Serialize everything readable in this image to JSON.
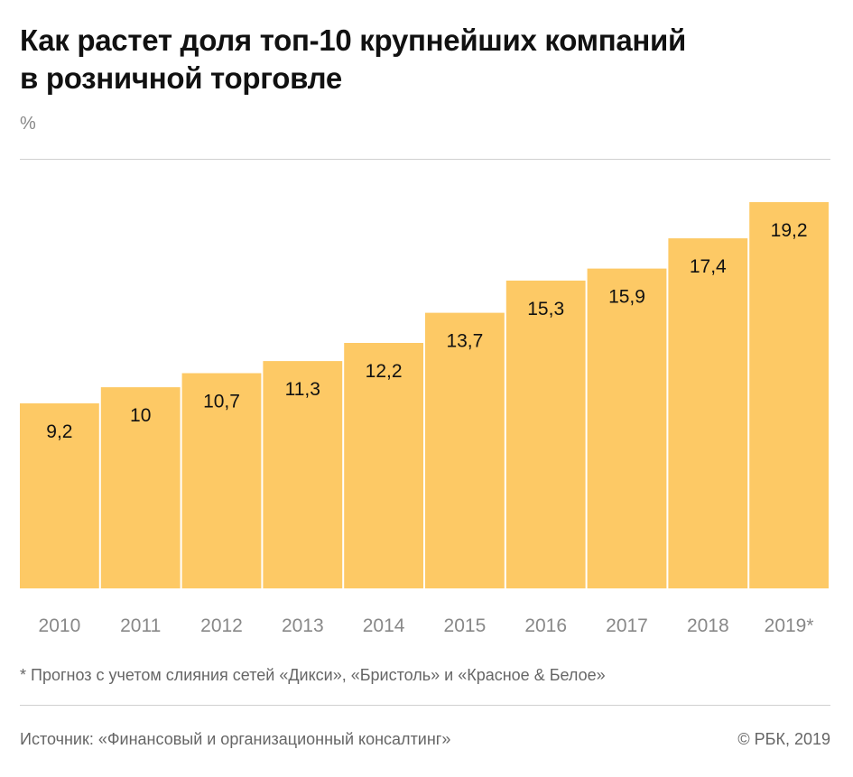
{
  "title_lines": [
    "Как растет доля топ-10 крупнейших компаний",
    "в розничной торговле"
  ],
  "unit": "%",
  "footnote": "* Прогноз с учетом слияния сетей «Дикси», «Бристоль» и «Красное & Белое»",
  "source": "Источник: «Финансовый и организационный консалтинг»",
  "copyright": "© РБК, 2019",
  "colors": {
    "bar": "#fdc965",
    "value_text": "#111111",
    "tick_text": "#888888"
  },
  "chart_data": {
    "type": "bar",
    "categories": [
      "2010",
      "2011",
      "2012",
      "2013",
      "2014",
      "2015",
      "2016",
      "2017",
      "2018",
      "2019*"
    ],
    "values": [
      9.2,
      10,
      10.7,
      11.3,
      12.2,
      13.7,
      15.3,
      15.9,
      17.4,
      19.2
    ],
    "value_labels": [
      "9,2",
      "10",
      "10,7",
      "11,3",
      "12,2",
      "13,7",
      "15,3",
      "15,9",
      "17,4",
      "19,2"
    ],
    "ylabel": "%",
    "ylim": [
      0,
      19.2
    ],
    "grid": false,
    "legend": "none"
  }
}
